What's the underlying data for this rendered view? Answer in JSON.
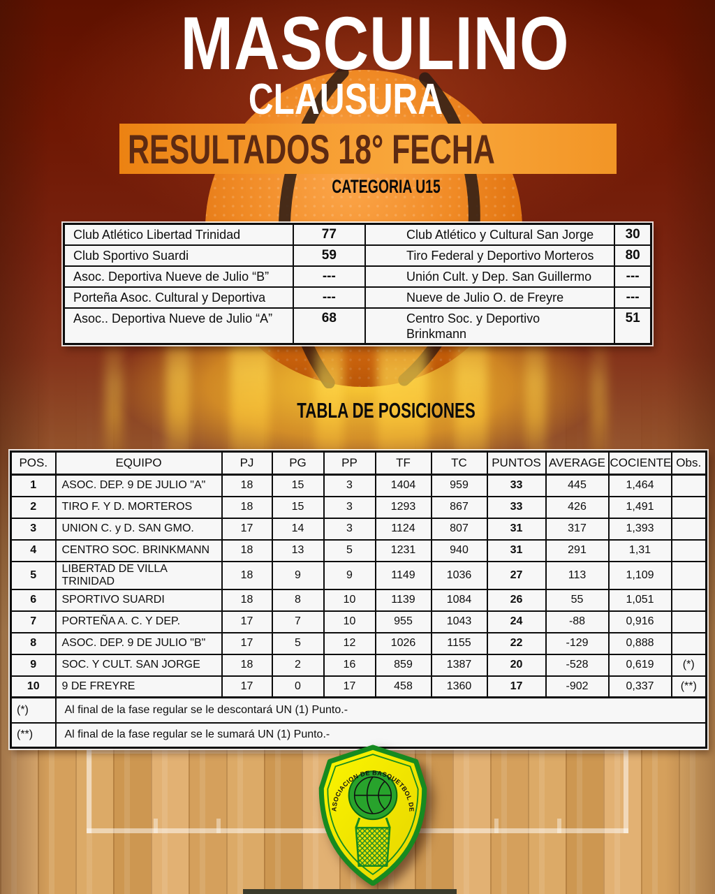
{
  "header": {
    "title": "MASCULINO",
    "subtitle": "CLAUSURA",
    "banner": "RESULTADOS 18° FECHA",
    "category": "CATEGORIA U15"
  },
  "results": {
    "rows": [
      {
        "home": "Club Atlético Libertad Trinidad",
        "home_score": "77",
        "away": "Club Atlético y Cultural San Jorge",
        "away_score": "30"
      },
      {
        "home": "Club Sportivo Suardi",
        "home_score": "59",
        "away": "Tiro Federal y Deportivo Morteros",
        "away_score": "80"
      },
      {
        "home": "Asoc. Deportiva Nueve de Julio “B”",
        "home_score": "---",
        "away": "Unión Cult. y Dep. San Guillermo",
        "away_score": "---"
      },
      {
        "home": "Porteña Asoc. Cultural y Deportiva",
        "home_score": "---",
        "away": "Nueve de Julio O. de Freyre",
        "away_score": "---"
      },
      {
        "home": "Asoc.. Deportiva Nueve de Julio “A”",
        "home_score": "68",
        "away": "Centro Soc. y Deportivo\nBrinkmann",
        "away_score": "51"
      }
    ]
  },
  "standings": {
    "title": "TABLA DE POSICIONES",
    "headers": [
      "POS.",
      "EQUIPO",
      "PJ",
      "PG",
      "PP",
      "TF",
      "TC",
      "PUNTOS",
      "AVERAGE",
      "COCIENTE",
      "Obs."
    ],
    "rows": [
      [
        "1",
        "ASOC. DEP. 9 DE JULIO \"A\"",
        "18",
        "15",
        "3",
        "1404",
        "959",
        "33",
        "445",
        "1,464",
        ""
      ],
      [
        "2",
        "TIRO F. Y D. MORTEROS",
        "18",
        "15",
        "3",
        "1293",
        "867",
        "33",
        "426",
        "1,491",
        ""
      ],
      [
        "3",
        "UNION C. y D. SAN GMO.",
        "17",
        "14",
        "3",
        "1124",
        "807",
        "31",
        "317",
        "1,393",
        ""
      ],
      [
        "4",
        "CENTRO SOC. BRINKMANN",
        "18",
        "13",
        "5",
        "1231",
        "940",
        "31",
        "291",
        "1,31",
        ""
      ],
      [
        "5",
        "LIBERTAD DE VILLA TRINIDAD",
        "18",
        "9",
        "9",
        "1149",
        "1036",
        "27",
        "113",
        "1,109",
        ""
      ],
      [
        "6",
        "SPORTIVO SUARDI",
        "18",
        "8",
        "10",
        "1139",
        "1084",
        "26",
        "55",
        "1,051",
        ""
      ],
      [
        "7",
        "PORTEÑA A. C. Y DEP.",
        "17",
        "7",
        "10",
        "955",
        "1043",
        "24",
        "-88",
        "0,916",
        ""
      ],
      [
        "8",
        "ASOC. DEP. 9 DE JULIO \"B\"",
        "17",
        "5",
        "12",
        "1026",
        "1155",
        "22",
        "-129",
        "0,888",
        ""
      ],
      [
        "9",
        "SOC. Y CULT.  SAN JORGE",
        "18",
        "2",
        "16",
        "859",
        "1387",
        "20",
        "-528",
        "0,619",
        "(*)"
      ],
      [
        "10",
        "9 DE FREYRE",
        "17",
        "0",
        "17",
        "458",
        "1360",
        "17",
        "-902",
        "0,337",
        "(**)"
      ]
    ],
    "footnotes": [
      {
        "symbol": "(*)",
        "text": "Al final de la fase regular se le descontará UN (1) Punto.-"
      },
      {
        "symbol": "(**)",
        "text": "Al final de la fase regular se le sumará UN (1) Punto.-"
      }
    ]
  },
  "logo": {
    "text": "ASOCIACION DE BASQUETBOL DE MORTEROS"
  },
  "colors": {
    "background_red": "#6e1703",
    "banner_orange": "#f79e33",
    "banner_text": "#5d2a12",
    "gold_glow": "#ffd034",
    "wood": "#d8a660",
    "logo_green": "#1d8c28",
    "logo_yellow": "#f4ee00",
    "title_white": "#ffffff"
  }
}
